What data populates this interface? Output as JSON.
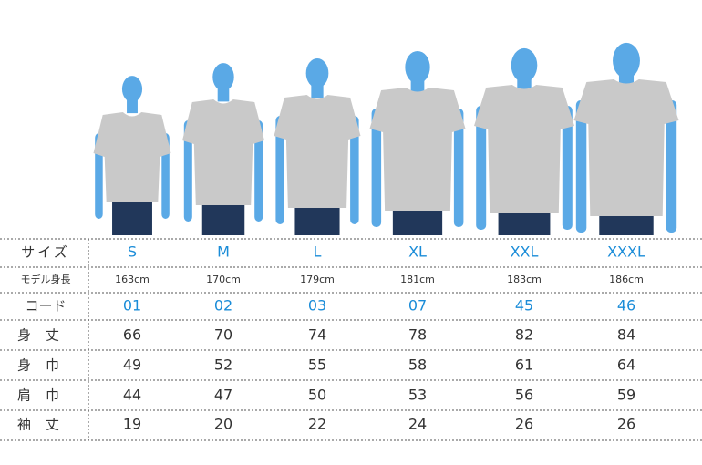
{
  "table": {
    "header": {
      "label": "サイズ",
      "cells": [
        "S",
        "M",
        "L",
        "XL",
        "XXL",
        "XXXL"
      ]
    },
    "rows": [
      {
        "label": "モデル身長",
        "cells": [
          "163cm",
          "170cm",
          "179cm",
          "181cm",
          "183cm",
          "186cm"
        ]
      },
      {
        "label": "コード",
        "cells": [
          "01",
          "02",
          "03",
          "07",
          "45",
          "46"
        ]
      },
      {
        "label": "身丈",
        "cells": [
          66,
          70,
          74,
          78,
          82,
          84
        ]
      },
      {
        "label": "身巾",
        "cells": [
          49,
          52,
          55,
          58,
          61,
          64
        ]
      },
      {
        "label": "肩巾",
        "cells": [
          44,
          47,
          50,
          53,
          56,
          59
        ]
      },
      {
        "label": "袖丈",
        "cells": [
          19,
          20,
          22,
          24,
          26,
          26
        ]
      }
    ]
  }
}
